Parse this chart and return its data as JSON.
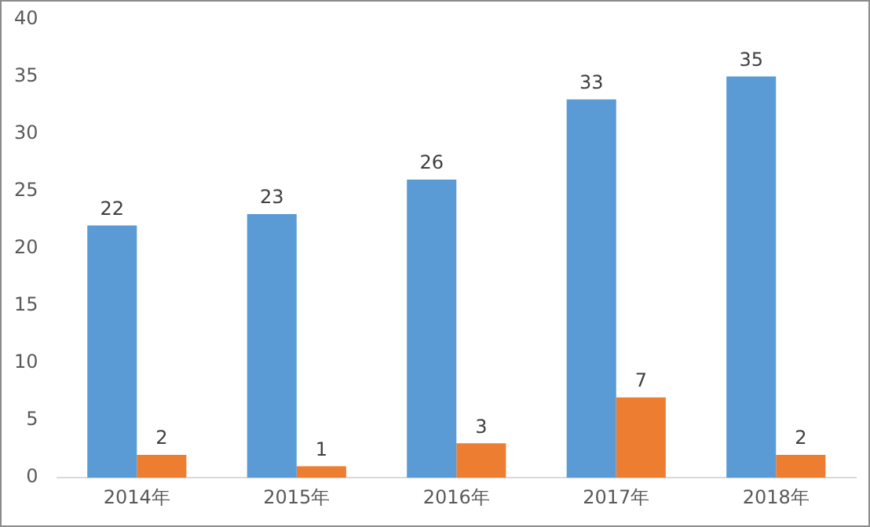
{
  "chart_data": {
    "type": "bar",
    "categories": [
      "2014年",
      "2015年",
      "2016年",
      "2017年",
      "2018年"
    ],
    "series": [
      {
        "color": "#5b9bd5",
        "values": [
          22,
          23,
          26,
          33,
          35
        ]
      },
      {
        "color": "#ed7d31",
        "values": [
          2,
          1,
          3,
          7,
          2
        ]
      }
    ],
    "ylim": [
      0,
      40
    ],
    "yticks": [
      0,
      5,
      10,
      15,
      20,
      25,
      30,
      35,
      40
    ],
    "grid": false,
    "legend": false,
    "data_labels": true
  }
}
